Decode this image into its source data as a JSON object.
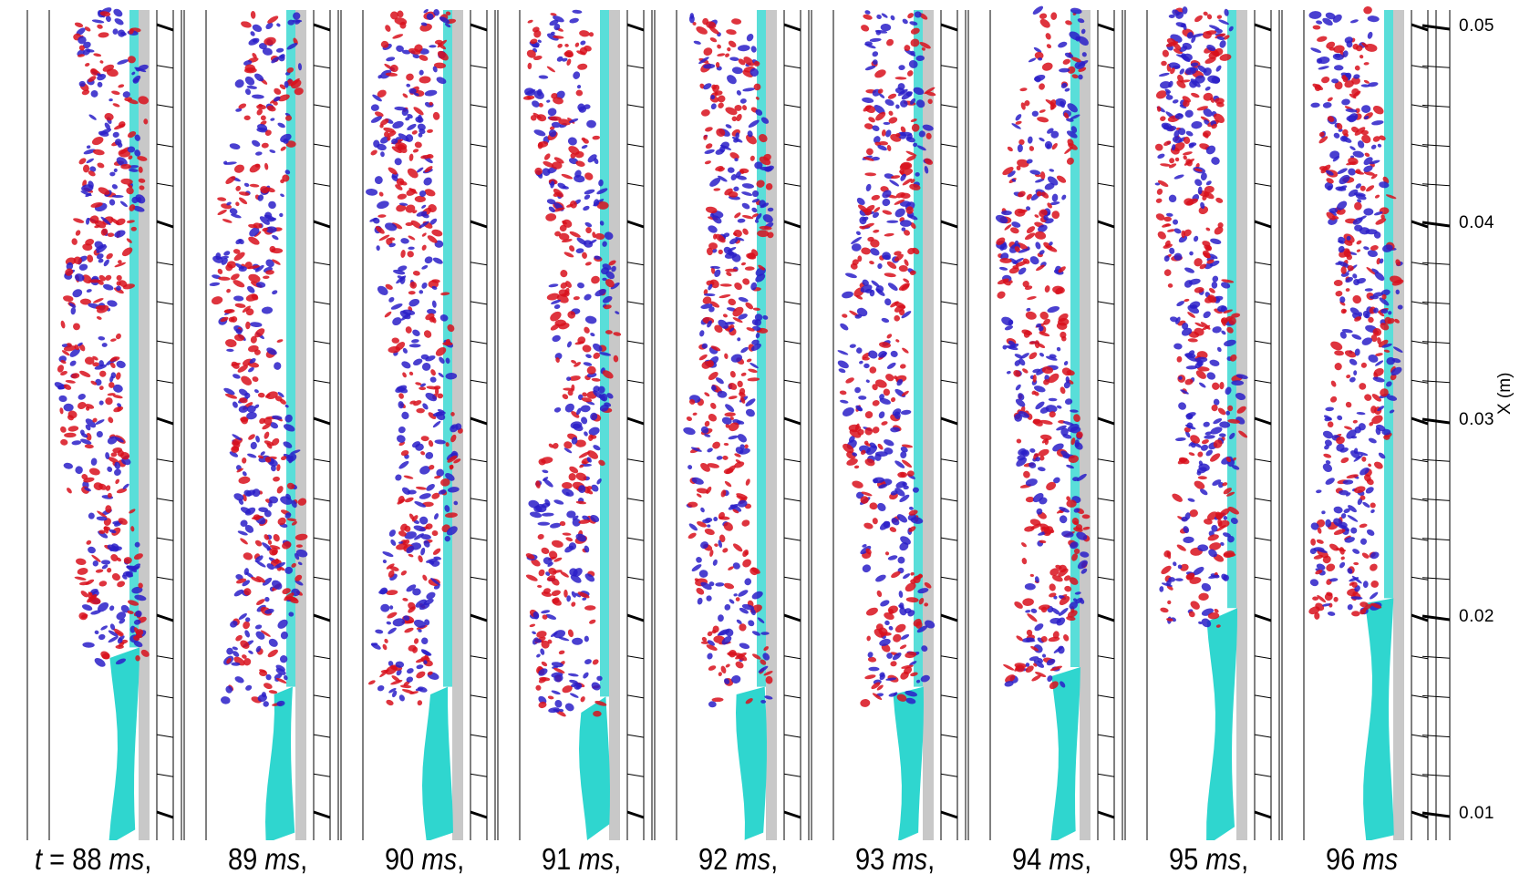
{
  "figure": {
    "panels": [
      {
        "prefix": "t",
        "eq": " = ",
        "time": "88",
        "unit": "ms",
        "suffix": ",",
        "breakup_x": 0.0185
      },
      {
        "prefix": "",
        "eq": "",
        "time": "89",
        "unit": "ms",
        "suffix": ",",
        "breakup_x": 0.0165
      },
      {
        "prefix": "",
        "eq": "",
        "time": "90",
        "unit": "ms",
        "suffix": ",",
        "breakup_x": 0.0165
      },
      {
        "prefix": "",
        "eq": "",
        "time": "91",
        "unit": "ms",
        "suffix": ",",
        "breakup_x": 0.016
      },
      {
        "prefix": "",
        "eq": "",
        "time": "92",
        "unit": "ms",
        "suffix": ",",
        "breakup_x": 0.0165
      },
      {
        "prefix": "",
        "eq": "",
        "time": "93",
        "unit": "ms",
        "suffix": ",",
        "breakup_x": 0.0165
      },
      {
        "prefix": "",
        "eq": "",
        "time": "94",
        "unit": "ms",
        "suffix": ",",
        "breakup_x": 0.0175
      },
      {
        "prefix": "",
        "eq": "",
        "time": "95",
        "unit": "ms",
        "suffix": ",",
        "breakup_x": 0.0205
      },
      {
        "prefix": "",
        "eq": "",
        "time": "96",
        "unit": "ms",
        "suffix": "",
        "breakup_x": 0.021
      }
    ],
    "axis": {
      "title": "X (m)",
      "ticks": [
        "0.05",
        "0.04",
        "0.03",
        "0.02",
        "0.01"
      ],
      "range": [
        0.0086,
        0.051
      ]
    },
    "colors": {
      "jet": "#2fd6cf",
      "vortex_positive": "#d8101c",
      "vortex_negative": "#2a1fc8",
      "wall": "#c8c8c8"
    }
  }
}
